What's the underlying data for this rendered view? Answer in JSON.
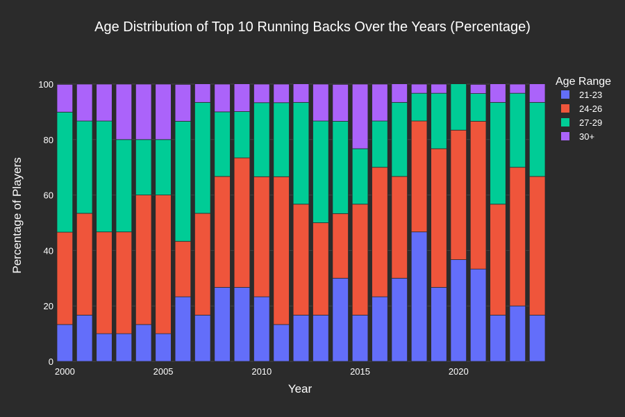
{
  "chart_data": {
    "type": "bar",
    "stacked": true,
    "normalized_percent": true,
    "title": "Age Distribution of Top 10 Running Backs Over the Years (Percentage)",
    "xlabel": "Year",
    "ylabel": "Percentage of Players",
    "ylim": [
      0,
      100
    ],
    "y_ticks": [
      0,
      20,
      40,
      60,
      80,
      100
    ],
    "x_ticks": [
      2000,
      2005,
      2010,
      2015,
      2020
    ],
    "x_range": [
      1999.6,
      2024.4
    ],
    "grid": true,
    "legend": {
      "title": "Age Range",
      "position": "top-right"
    },
    "categories": [
      2000,
      2001,
      2002,
      2003,
      2004,
      2005,
      2006,
      2007,
      2008,
      2009,
      2010,
      2011,
      2012,
      2013,
      2014,
      2015,
      2016,
      2017,
      2018,
      2019,
      2020,
      2021,
      2022,
      2023,
      2024
    ],
    "series": [
      {
        "name": "21-23",
        "color": "#636efa",
        "values": [
          13.3,
          16.7,
          10.0,
          10.0,
          13.3,
          10.0,
          23.3,
          16.7,
          26.7,
          26.7,
          23.3,
          13.3,
          16.7,
          16.7,
          30.0,
          16.7,
          23.3,
          30.0,
          46.7,
          26.7,
          36.7,
          33.3,
          16.7,
          20.0,
          16.7
        ]
      },
      {
        "name": "24-26",
        "color": "#ef553b",
        "values": [
          33.3,
          36.7,
          36.7,
          36.7,
          46.7,
          50.0,
          20.0,
          36.7,
          40.0,
          46.7,
          43.3,
          53.3,
          40.0,
          33.3,
          23.3,
          40.0,
          46.7,
          36.7,
          40.0,
          50.0,
          46.7,
          53.3,
          40.0,
          50.0,
          50.0
        ]
      },
      {
        "name": "27-29",
        "color": "#00cc96",
        "values": [
          43.3,
          33.3,
          40.0,
          33.3,
          20.0,
          20.0,
          43.3,
          40.0,
          23.3,
          16.7,
          26.7,
          26.7,
          36.7,
          36.7,
          33.3,
          20.0,
          16.7,
          26.7,
          10.0,
          20.0,
          16.7,
          10.0,
          36.7,
          26.7,
          26.7
        ]
      },
      {
        "name": "30+",
        "color": "#ab63fa",
        "values": [
          10.0,
          13.3,
          13.3,
          20.0,
          20.0,
          20.0,
          13.3,
          6.7,
          10.0,
          10.0,
          6.7,
          6.7,
          6.7,
          13.3,
          13.3,
          23.3,
          13.3,
          6.7,
          3.3,
          3.3,
          0.0,
          3.3,
          6.7,
          3.3,
          6.7
        ]
      }
    ]
  }
}
